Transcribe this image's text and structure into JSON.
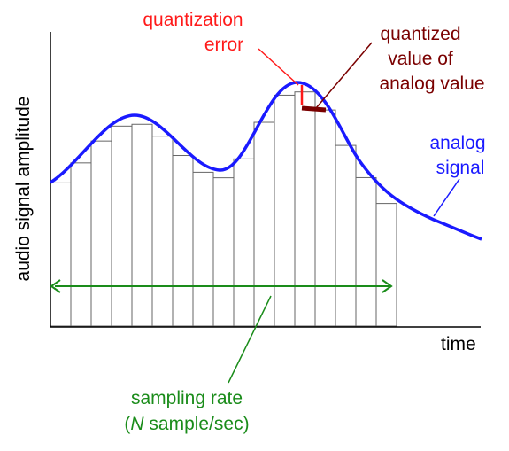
{
  "diagram": {
    "y_axis_label": "audio signal amplitude",
    "x_axis_label": "time",
    "quantization_error": {
      "line1": "quantization",
      "line2": "error",
      "color": "#ff1a1a"
    },
    "quantized_value": {
      "line1": "quantized",
      "line2": "value of",
      "line3": "analog value",
      "color": "#7a0000"
    },
    "analog_signal": {
      "line1": "analog",
      "line2": "signal",
      "color": "#1a1aff"
    },
    "sampling_rate": {
      "line1": "sampling rate",
      "line2_open": "(",
      "line2_symbol": "N",
      "line2_rest": " sample/sec)",
      "color": "#1a8c1a"
    },
    "sample_bar_count": 17
  }
}
